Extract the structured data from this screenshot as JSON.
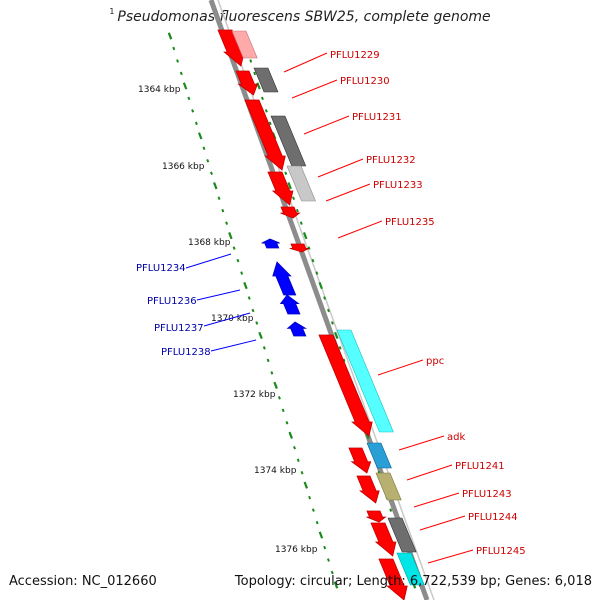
{
  "title": {
    "superscript": "1",
    "text": "Pseudomonas fluorescens SBW25, complete genome"
  },
  "footer": {
    "accession": "Accession: NC_012660",
    "summary": "Topology: circular; Length: 6,722,539 bp; Genes: 6,018"
  },
  "colors": {
    "forward_strand_gene": "#ff0000",
    "reverse_strand_gene": "#0000ff",
    "forward_label": "#cc0000",
    "reverse_label": "#0000aa",
    "backbone": "#8c8c8c",
    "tick": "#1a8a1a",
    "cog_gray": "#6e6e6e",
    "cog_lightgray": "#c8c8c8",
    "cog_pink": "#ffaaaa",
    "cog_cyan": "#00e5e5",
    "cog_lightcyan": "#55ffff",
    "cog_blue": "#2a9fd6",
    "cog_olive": "#b8b070"
  },
  "axis": {
    "kbp_labels": [
      "1364 kbp",
      "1366 kbp",
      "1368 kbp",
      "1370 kbp",
      "1372 kbp",
      "1374 kbp",
      "1376 kbp"
    ]
  },
  "genes_forward": [
    {
      "label": "PFLU1229",
      "cog": "cog_pink"
    },
    {
      "label": "PFLU1230",
      "cog": "cog_gray"
    },
    {
      "label": "PFLU1231",
      "cog": "cog_gray"
    },
    {
      "label": "PFLU1232",
      "cog": "cog_lightgray"
    },
    {
      "label": "PFLU1233",
      "cog": null
    },
    {
      "label": "PFLU1235",
      "cog": null
    },
    {
      "label": "ppc",
      "cog": "cog_lightcyan"
    },
    {
      "label": "adk",
      "cog": "cog_blue"
    },
    {
      "label": "PFLU1241",
      "cog": "cog_olive"
    },
    {
      "label": "PFLU1243",
      "cog": null
    },
    {
      "label": "PFLU1244",
      "cog": "cog_gray"
    },
    {
      "label": "PFLU1245",
      "cog": "cog_cyan"
    }
  ],
  "genes_reverse": [
    {
      "label": "PFLU1234"
    },
    {
      "label": "PFLU1236"
    },
    {
      "label": "PFLU1237"
    },
    {
      "label": "PFLU1238"
    }
  ]
}
